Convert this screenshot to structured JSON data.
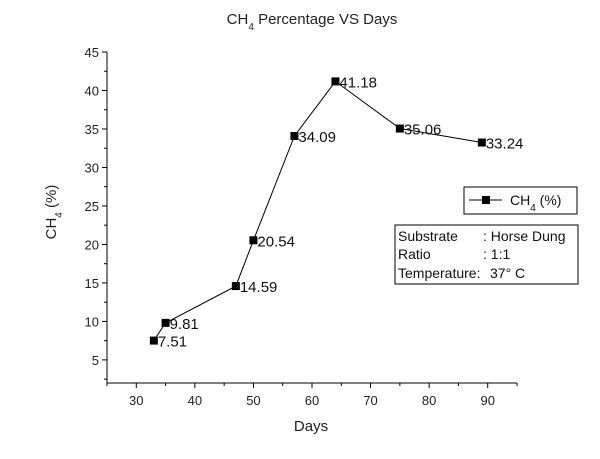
{
  "chart_data": {
    "type": "line",
    "title": "CH4 Percentage VS Days",
    "title_main": "CH",
    "title_sub": "4",
    "title_rest": " Percentage VS Days",
    "xlabel": "Days",
    "ylabel_main": "CH",
    "ylabel_sub": "4",
    "ylabel_rest": " (%)",
    "xlim": [
      25,
      95
    ],
    "ylim": [
      2,
      45
    ],
    "xticks": [
      30,
      40,
      50,
      60,
      70,
      80,
      90
    ],
    "yticks": [
      5,
      10,
      15,
      20,
      25,
      30,
      35,
      40,
      45
    ],
    "grid": false,
    "legend_position": "right",
    "series": [
      {
        "name": "CH4 (%)",
        "name_main": "CH",
        "name_sub": "4",
        "name_rest": " (%)",
        "color": "#000000",
        "marker": "square",
        "x": [
          33,
          35,
          47,
          50,
          57,
          64,
          75,
          89
        ],
        "y": [
          7.51,
          9.81,
          14.59,
          20.54,
          34.09,
          41.18,
          35.06,
          33.24
        ],
        "labels": [
          "7.51",
          "9.81",
          "14.59",
          "20.54",
          "34.09",
          "41.18",
          "35.06",
          "33.24"
        ]
      }
    ],
    "info_box": [
      {
        "key": "Substrate",
        "value": ": Horse Dung"
      },
      {
        "key": "Ratio",
        "value": ": 1:1"
      },
      {
        "key": "Temperature:",
        "value": "37° C"
      }
    ]
  }
}
